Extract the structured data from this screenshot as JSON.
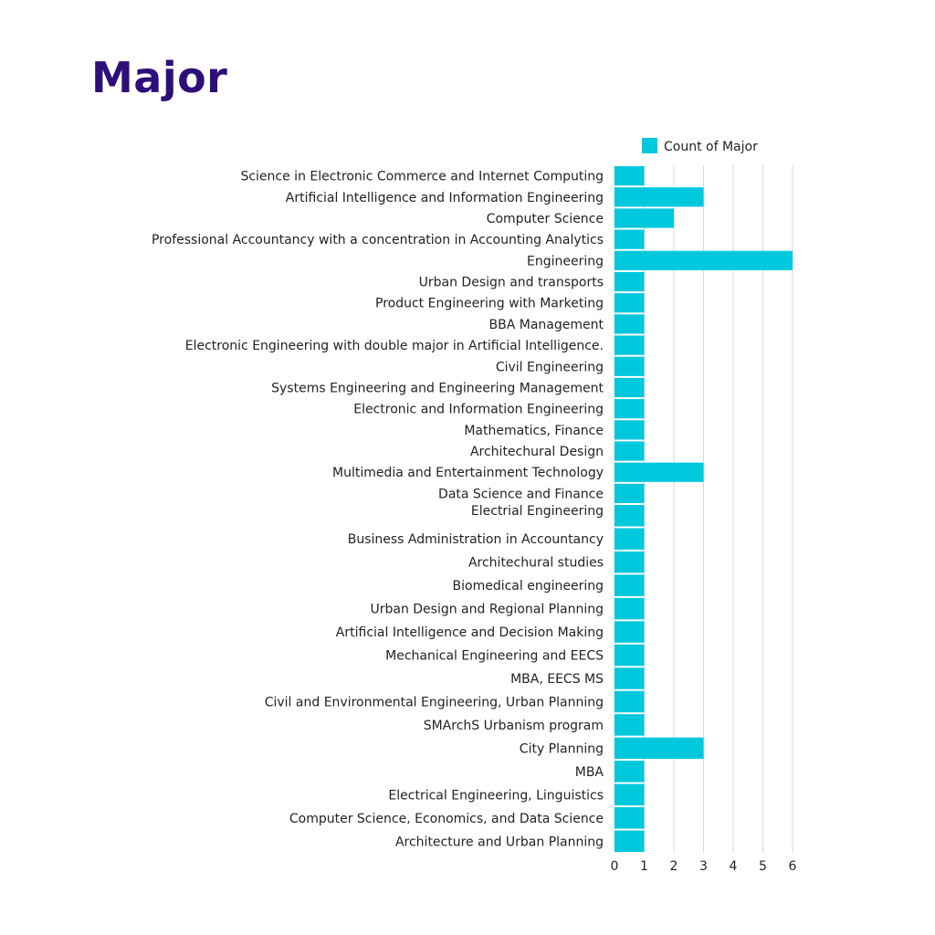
{
  "title": "Major",
  "colors": {
    "title": "#2e0f7a",
    "bar": "#00c8dc",
    "grid": "#d9d9d9"
  },
  "chart_data": {
    "type": "bar",
    "orientation": "horizontal",
    "title": "Major",
    "xlabel": "",
    "ylabel": "",
    "xlim": [
      0,
      6
    ],
    "x_ticks": [
      0,
      1,
      2,
      3,
      4,
      5,
      6
    ],
    "grid": true,
    "legend_placement": "top",
    "series": [
      {
        "name": "Count of Major",
        "color": "#00c8dc",
        "values": [
          1,
          3,
          2,
          1,
          6,
          1,
          1,
          1,
          1,
          1,
          1,
          1,
          1,
          1,
          3,
          1,
          1,
          1,
          1,
          1,
          1,
          1,
          1,
          1,
          1,
          1,
          3,
          1,
          1,
          1,
          1
        ]
      }
    ],
    "categories": [
      "Science in Electronic Commerce and Internet Computing",
      "Artificial Intelligence and Information Engineering",
      "Computer Science",
      "Professional Accountancy with a concentration in Accounting Analytics",
      "Engineering",
      "Urban Design and transports",
      "Product Engineering with Marketing",
      "BBA Management",
      "Electronic Engineering with double major in Artificial Intelligence.",
      "Civil Engineering",
      "Systems Engineering and Engineering Management",
      "Electronic and Information Engineering",
      "Mathematics, Finance",
      "Architechural Design",
      "Multimedia and Entertainment Technology",
      "Data Science and Finance",
      "Electrial Engineering",
      "Business Administration in Accountancy",
      "Architechural studies",
      "Biomedical engineering",
      "Urban Design and Regional Planning",
      "Artificial Intelligence and Decision Making",
      "Mechanical Engineering and EECS",
      "MBA, EECS MS",
      "Civil and Environmental Engineering, Urban Planning",
      "SMArchS Urbanism program",
      "City Planning",
      "MBA",
      "Electrical Engineering, Linguistics",
      "Computer Science, Economics, and Data Science",
      "Architecture and Urban Planning"
    ]
  }
}
